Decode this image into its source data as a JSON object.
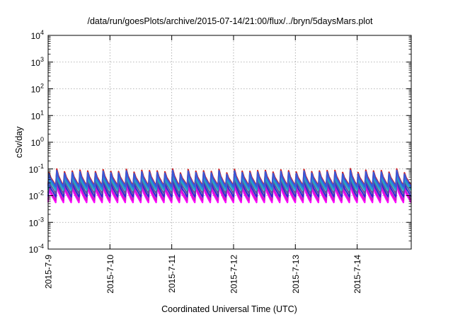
{
  "chart_data": {
    "type": "line",
    "title": "/data/run/goesPlots/archive/2015-07-14/21:00/flux/../bryn/5daysMars.plot",
    "xlabel": "Coordinated Universal Time (UTC)",
    "ylabel": "cSv/day",
    "yscale": "log",
    "ylim": [
      0.0001,
      10000
    ],
    "y_ticks": [
      {
        "base": "10",
        "exp": "-4",
        "value": 0.0001
      },
      {
        "base": "10",
        "exp": "-3",
        "value": 0.001
      },
      {
        "base": "10",
        "exp": "-2",
        "value": 0.01
      },
      {
        "base": "10",
        "exp": "-1",
        "value": 0.1
      },
      {
        "base": "10",
        "exp": "0",
        "value": 1
      },
      {
        "base": "10",
        "exp": "1",
        "value": 10
      },
      {
        "base": "10",
        "exp": "2",
        "value": 100
      },
      {
        "base": "10",
        "exp": "3",
        "value": 1000
      },
      {
        "base": "10",
        "exp": "4",
        "value": 10000
      }
    ],
    "xlim": [
      "2015-07-09 00:00",
      "2015-07-14 21:00"
    ],
    "x_ticks": [
      "2015-7-9",
      "2015-7-10",
      "2015-7-11",
      "2015-7-12",
      "2015-7-13",
      "2015-7-14"
    ],
    "grid": true,
    "cycle_hours": 3,
    "series": [
      {
        "color": "#ff00ff",
        "peak": 0.022,
        "trough": 0.0055
      },
      {
        "color": "#c81ec8",
        "peak": 0.028,
        "trough": 0.0068
      },
      {
        "color": "#2b2bd0",
        "peak": 0.036,
        "trough": 0.009
      },
      {
        "color": "#5a5aa0",
        "peak": 0.045,
        "trough": 0.012
      },
      {
        "color": "#20b0c0",
        "peak": 0.052,
        "trough": 0.016
      },
      {
        "color": "#2f7fe0",
        "peak": 0.065,
        "trough": 0.019
      },
      {
        "color": "#d02020",
        "peak": 0.085,
        "trough": 0.024
      },
      {
        "color": "#3a58d8",
        "peak": 0.075,
        "trough": 0.022
      }
    ]
  }
}
